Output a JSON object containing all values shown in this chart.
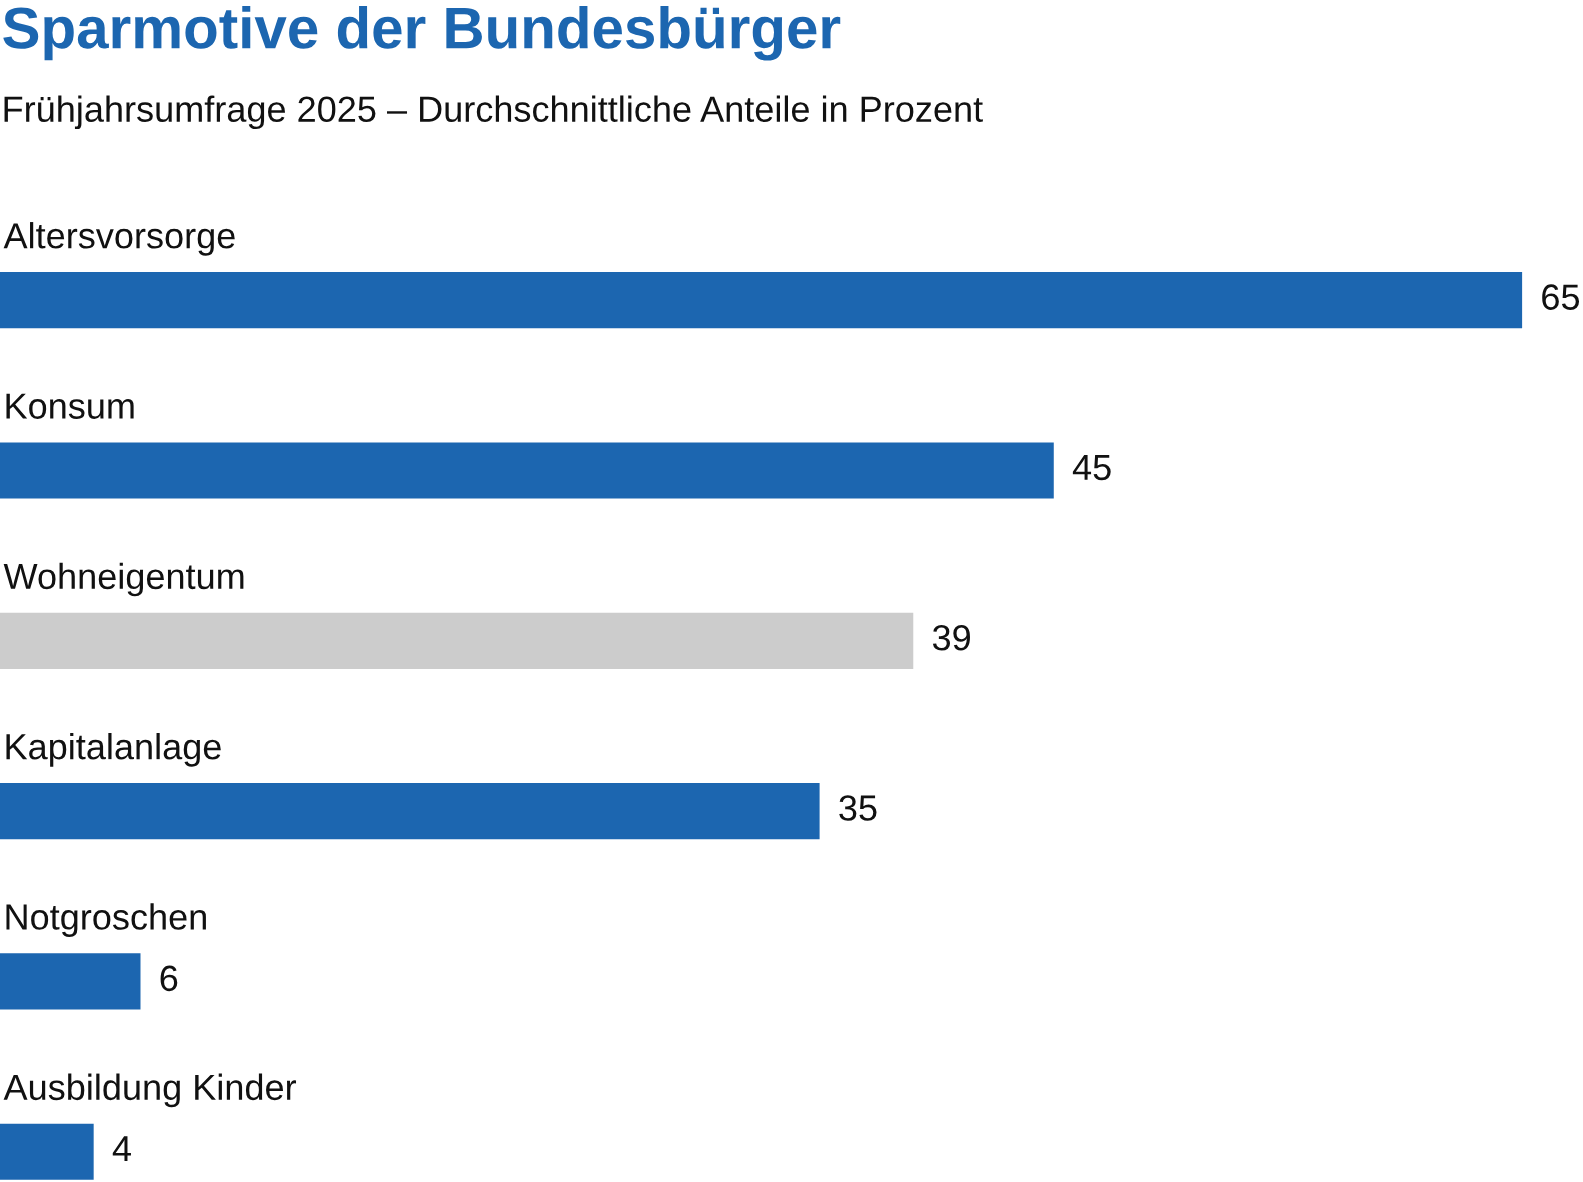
{
  "chart_data": {
    "type": "bar",
    "orientation": "horizontal",
    "title": "Sparmotive der Bundesbürger",
    "subtitle": "Frühjahrsumfrage 2025 – Durchschnittliche Anteile in Prozent",
    "categories": [
      "Altersvorsorge",
      "Konsum",
      "Wohneigentum",
      "Kapitalanlage",
      "Notgroschen",
      "Ausbildung Kinder"
    ],
    "values": [
      65,
      45,
      39,
      35,
      6,
      4
    ],
    "colors": [
      "#1c66b0",
      "#1c66b0",
      "#cccccc",
      "#1c66b0",
      "#1c66b0",
      "#1c66b0"
    ],
    "data_labels": true
  }
}
